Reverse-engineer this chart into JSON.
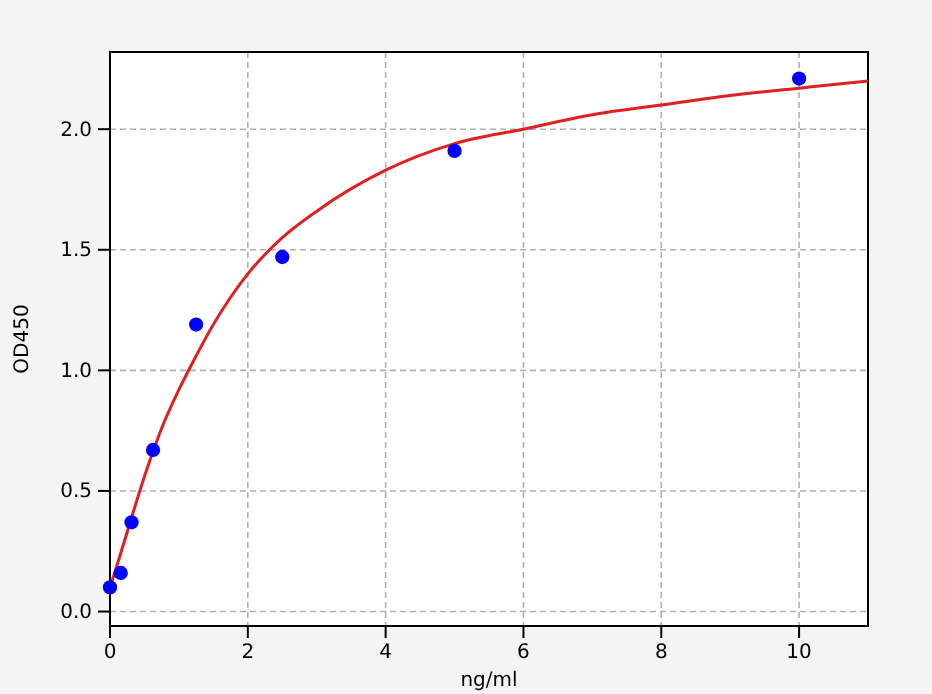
{
  "chart_data": {
    "type": "scatter",
    "xlabel": "ng/ml",
    "ylabel": "OD450",
    "xlim": [
      0,
      11
    ],
    "ylim": [
      -0.06,
      2.32
    ],
    "xticks": [
      0,
      2,
      4,
      6,
      8,
      10
    ],
    "yticks": [
      {
        "value": 0,
        "label": "0.0"
      },
      {
        "value": 0.5,
        "label": "0.5"
      },
      {
        "value": 1,
        "label": "1.0"
      },
      {
        "value": 1.5,
        "label": "1.5"
      },
      {
        "value": 2,
        "label": "2.0"
      }
    ],
    "grid": true,
    "marker": "circle",
    "series": [
      {
        "color": "#0000ff",
        "x": [
          0,
          0.156,
          0.312,
          0.625,
          1.25,
          2.5,
          5,
          10
        ],
        "values": [
          0.1,
          0.16,
          0.37,
          0.67,
          1.19,
          1.47,
          1.91,
          2.21
        ]
      },
      {
        "type": "line",
        "color": "#e02020",
        "line_style": "solid",
        "marker": "none",
        "x": [
          0,
          0.1,
          0.25,
          0.5,
          0.75,
          1,
          1.25,
          1.5,
          2,
          2.5,
          3,
          4,
          5,
          6,
          7,
          8,
          9,
          10,
          11
        ],
        "values": [
          0.1,
          0.19,
          0.33,
          0.56,
          0.76,
          0.92,
          1.06,
          1.19,
          1.4,
          1.55,
          1.66,
          1.83,
          1.94,
          2.0,
          2.06,
          2.1,
          2.14,
          2.17,
          2.2
        ]
      }
    ]
  }
}
